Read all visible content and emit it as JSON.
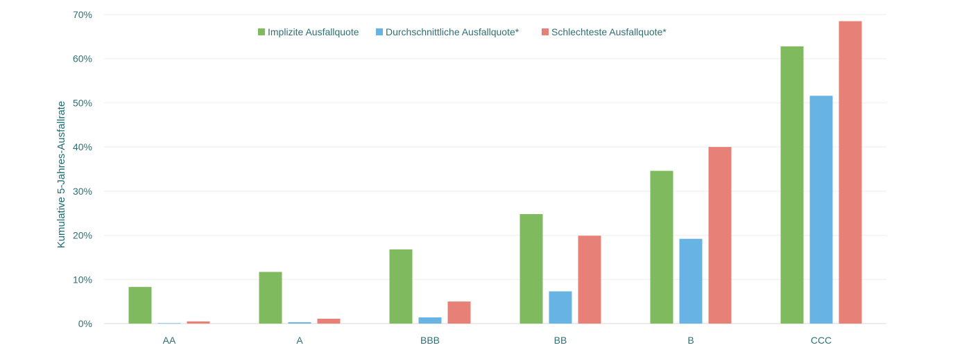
{
  "chart_data": {
    "type": "bar",
    "categories": [
      "AA",
      "A",
      "BBB",
      "BB",
      "B",
      "CCC"
    ],
    "series": [
      {
        "name": "Implizite Ausfallquote",
        "color": "#7fbb5e",
        "values": [
          8.3,
          11.7,
          16.8,
          24.8,
          34.6,
          62.8
        ]
      },
      {
        "name": "Durchschnittliche Ausfallquote*",
        "color": "#67b3e3",
        "values": [
          0.1,
          0.3,
          1.4,
          7.3,
          19.2,
          51.6
        ]
      },
      {
        "name": "Schlechteste Ausfallquote*",
        "color": "#e78177",
        "values": [
          0.5,
          1.1,
          5.0,
          19.9,
          40.0,
          68.5
        ]
      }
    ],
    "ylabel": "Kumulative 5-Jahres-Ausfallrate",
    "xlabel": "",
    "ylim": [
      0,
      70
    ],
    "yticks": [
      0,
      10,
      20,
      30,
      40,
      50,
      60,
      70
    ],
    "ytick_labels": [
      "0%",
      "10%",
      "20%",
      "30%",
      "40%",
      "50%",
      "60%",
      "70%"
    ],
    "grid": true,
    "legend_position": "top-center"
  }
}
